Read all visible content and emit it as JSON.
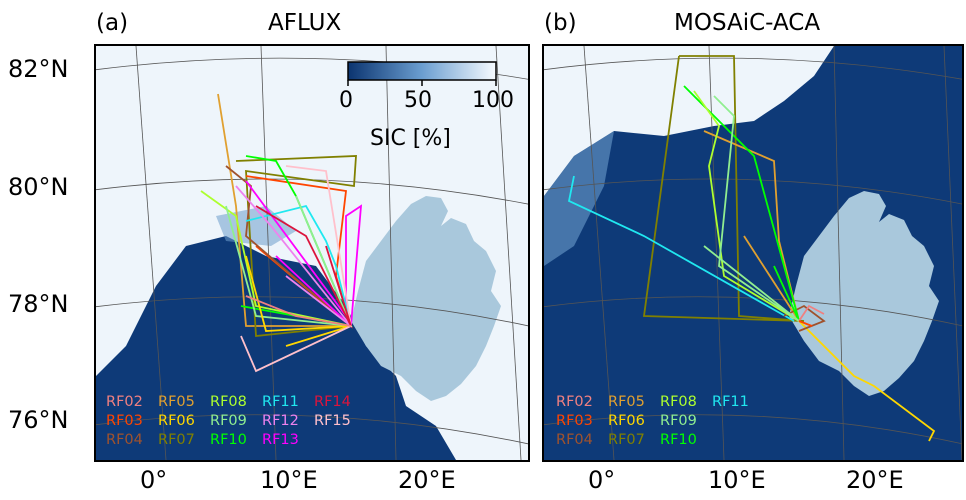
{
  "panels": [
    {
      "letter": "(a)",
      "title": "AFLUX"
    },
    {
      "letter": "(b)",
      "title": "MOSAiC-ACA"
    }
  ],
  "lat_labels": [
    "82°N",
    "80°N",
    "78°N",
    "76°N"
  ],
  "lon_labels": [
    "0°",
    "10°E",
    "20°E"
  ],
  "colorbar": {
    "ticks": [
      "0",
      "50",
      "100"
    ],
    "label": "SIC [%]",
    "range": [
      0,
      100
    ],
    "colors": {
      "low": "#0b3470",
      "mid": "#6b9ed0",
      "high": "#f7fbff"
    }
  },
  "colors": {
    "ocean": "#0e3a78",
    "sea_ice": "#eef5fb",
    "land": "#a9c8dc",
    "gridline": "#555555"
  },
  "legend_a": [
    {
      "label": "RF02",
      "color": "#f08080"
    },
    {
      "label": "RF05",
      "color": "#e0a030"
    },
    {
      "label": "RF08",
      "color": "#adff2f"
    },
    {
      "label": "RF11",
      "color": "#20e8f0"
    },
    {
      "label": "RF14",
      "color": "#dc143c"
    },
    {
      "label": "RF03",
      "color": "#ff4500"
    },
    {
      "label": "RF06",
      "color": "#ffd700"
    },
    {
      "label": "RF09",
      "color": "#90ee90"
    },
    {
      "label": "RF12",
      "color": "#ee82ee"
    },
    {
      "label": "RF15",
      "color": "#ffc0cb"
    },
    {
      "label": "RF04",
      "color": "#a0522d"
    },
    {
      "label": "RF07",
      "color": "#808000"
    },
    {
      "label": "RF10",
      "color": "#00ff00"
    },
    {
      "label": "RF13",
      "color": "#ff00ff"
    }
  ],
  "legend_b": [
    {
      "label": "RF02",
      "color": "#f08080"
    },
    {
      "label": "RF05",
      "color": "#e0a030"
    },
    {
      "label": "RF08",
      "color": "#adff2f"
    },
    {
      "label": "RF11",
      "color": "#20e8f0"
    },
    {
      "label": "RF03",
      "color": "#ff4500"
    },
    {
      "label": "RF06",
      "color": "#ffd700"
    },
    {
      "label": "RF09",
      "color": "#90ee90"
    },
    {
      "label": "RF04",
      "color": "#a0522d"
    },
    {
      "label": "RF07",
      "color": "#808000"
    },
    {
      "label": "RF10",
      "color": "#00ff00"
    }
  ]
}
